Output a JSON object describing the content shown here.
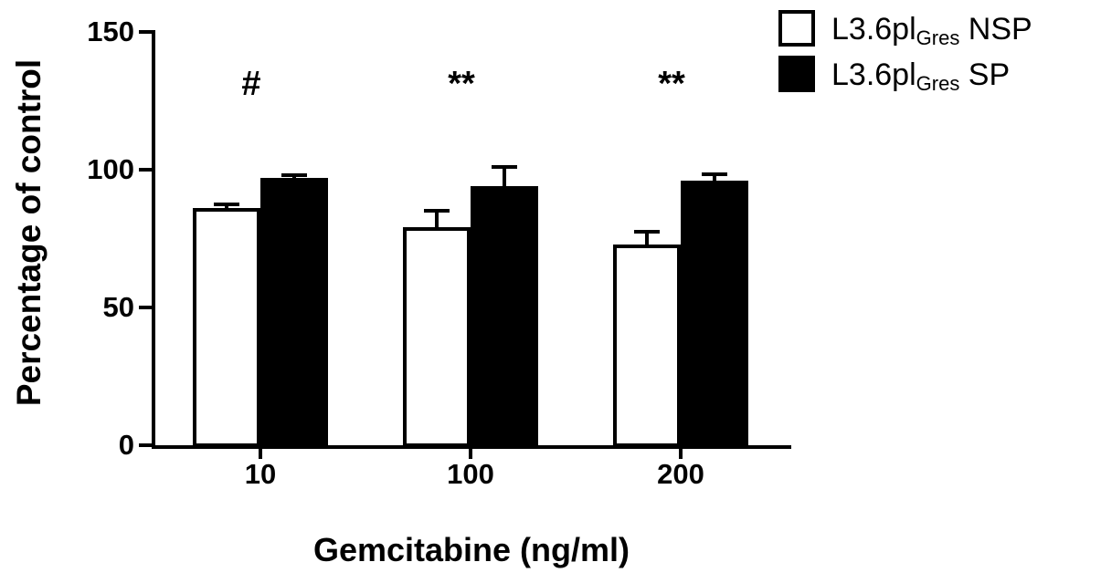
{
  "figure": {
    "background": "#ffffff",
    "bar_outline_color": "#000000"
  },
  "chart_data": {
    "type": "bar",
    "title": "",
    "xlabel": "Gemcitabine (ng/ml)",
    "ylabel": "Percentage of control",
    "categories": [
      "10",
      "100",
      "200"
    ],
    "ylim": [
      0,
      150
    ],
    "yticks": [
      0,
      50,
      100,
      150
    ],
    "grid": false,
    "legend_position": "top-right",
    "series": [
      {
        "name": "L3.6plGres NSP",
        "style": "open",
        "fill": "#ffffff",
        "border": "#000000",
        "values": [
          86,
          79,
          73
        ],
        "errors_plus": [
          1.5,
          6,
          4.5
        ]
      },
      {
        "name": "L3.6plGres SP",
        "style": "filled",
        "fill": "#000000",
        "border": "#000000",
        "values": [
          97,
          94,
          96
        ],
        "errors_plus": [
          1,
          7,
          2.5
        ]
      }
    ],
    "annotations": [
      {
        "category": "10",
        "text": "#"
      },
      {
        "category": "100",
        "text": "**"
      },
      {
        "category": "200",
        "text": "**"
      }
    ],
    "legend": {
      "items": [
        {
          "main": "L3.6pl",
          "sub": "Gres",
          "suffix": " NSP",
          "swatch": "#ffffff"
        },
        {
          "main": "L3.6pl",
          "sub": "Gres",
          "suffix": " SP",
          "swatch": "#000000"
        }
      ]
    }
  }
}
